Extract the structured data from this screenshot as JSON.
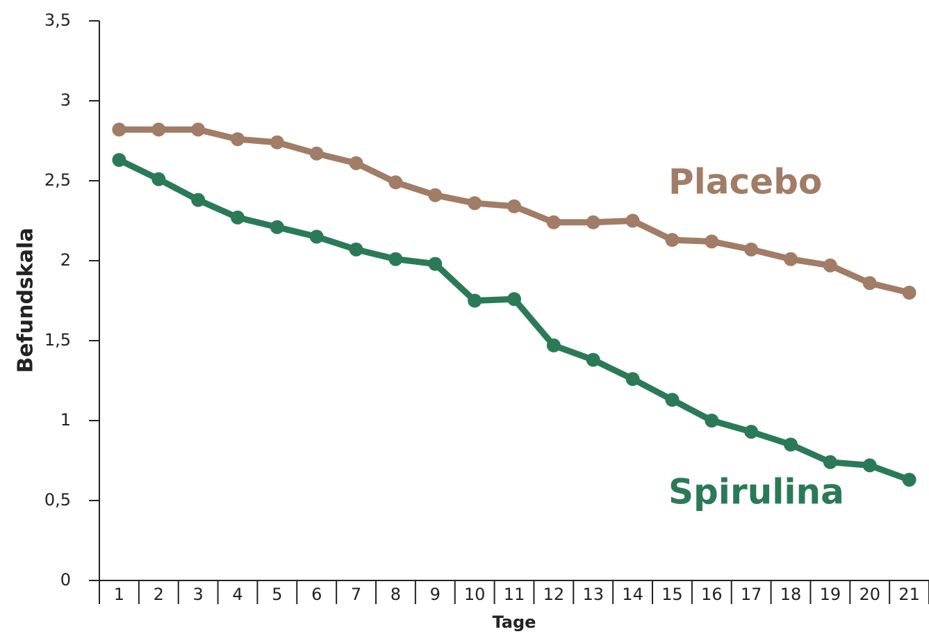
{
  "chart_data": {
    "type": "line",
    "categories": [
      "1",
      "2",
      "3",
      "4",
      "5",
      "6",
      "7",
      "8",
      "9",
      "10",
      "11",
      "12",
      "13",
      "14",
      "15",
      "16",
      "17",
      "18",
      "19",
      "20",
      "21"
    ],
    "series": [
      {
        "name": "Placebo",
        "color": "#a17c66",
        "values": [
          2.82,
          2.82,
          2.82,
          2.76,
          2.74,
          2.67,
          2.61,
          2.49,
          2.41,
          2.36,
          2.34,
          2.24,
          2.24,
          2.25,
          2.13,
          2.12,
          2.07,
          2.01,
          1.97,
          1.86,
          1.8
        ]
      },
      {
        "name": "Spirulina",
        "color": "#2b7a57",
        "values": [
          2.63,
          2.51,
          2.38,
          2.27,
          2.21,
          2.15,
          2.07,
          2.01,
          1.98,
          1.75,
          1.76,
          1.47,
          1.38,
          1.26,
          1.13,
          1.0,
          0.93,
          0.85,
          0.74,
          0.72,
          0.63
        ]
      }
    ],
    "x_label": "Tage",
    "y_label": "Befundskala",
    "ylim": [
      0,
      3.5
    ],
    "yticks": [
      0,
      {
        "value": 0.5,
        "label": "0,5"
      },
      1,
      {
        "value": 1.5,
        "label": "1,5"
      },
      2,
      {
        "value": 2.5,
        "label": "2,5"
      },
      3,
      {
        "value": 3.5,
        "label": "3,5"
      }
    ]
  }
}
